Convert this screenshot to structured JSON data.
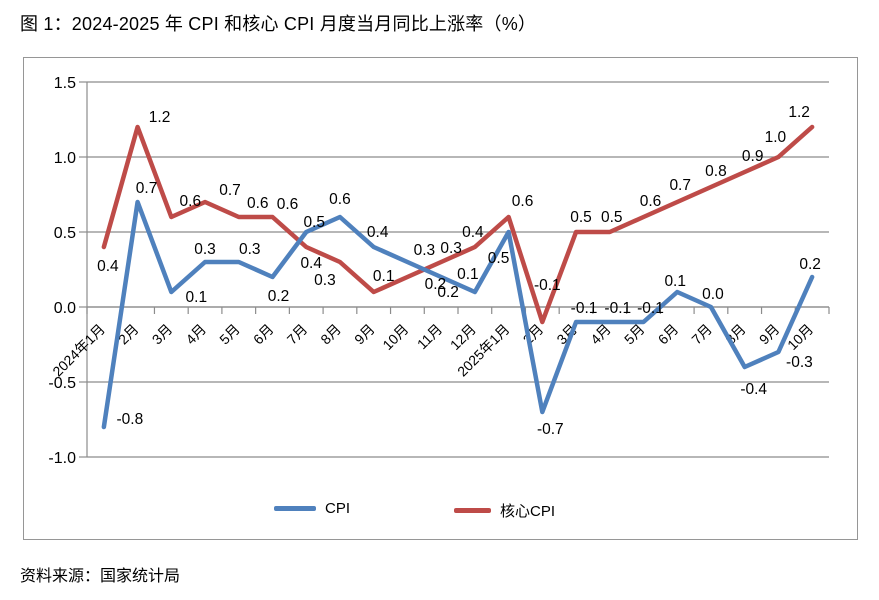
{
  "title": "图 1：2024-2025 年 CPI 和核心 CPI 月度当月同比上涨率（%）",
  "source": "资料来源：国家统计局",
  "colors": {
    "cpi_line": "#4F81BD",
    "core_cpi_line": "#BE4B48",
    "grid": "#8C8C8C",
    "axis": "#8C8C8C",
    "border": "#969696",
    "text": "#000000"
  },
  "chart_data": {
    "type": "line",
    "title": "图 1：2024-2025 年 CPI 和核心 CPI 月度当月同比上涨率（%）",
    "xlabel": "",
    "ylabel": "",
    "ylim": [
      -1.0,
      1.5
    ],
    "y_ticks": [
      1.5,
      1.0,
      0.5,
      0.0,
      -0.5,
      -1.0
    ],
    "grid": true,
    "legend_position": "bottom",
    "categories": [
      "2024年1月",
      "2月",
      "3月",
      "4月",
      "5月",
      "6月",
      "7月",
      "8月",
      "9月",
      "10月",
      "11月",
      "12月",
      "2025年1月",
      "2月",
      "3月",
      "4月",
      "5月",
      "6月",
      "7月",
      "8月",
      "9月",
      "10月"
    ],
    "series": [
      {
        "name": "CPI",
        "color": "#4F81BD",
        "values": [
          -0.8,
          0.7,
          0.1,
          0.3,
          0.3,
          0.2,
          0.5,
          0.6,
          0.4,
          0.3,
          0.2,
          0.1,
          0.5,
          -0.7,
          -0.1,
          -0.1,
          -0.1,
          0.1,
          0.0,
          -0.4,
          -0.3,
          0.2
        ],
        "label_offsets": [
          [
            26,
            -3
          ],
          [
            9,
            -9
          ],
          [
            25,
            10
          ],
          [
            0,
            -8
          ],
          [
            11,
            -8
          ],
          [
            6,
            24
          ],
          [
            8,
            -5
          ],
          [
            0,
            -13
          ],
          [
            4,
            -10
          ],
          [
            17,
            -7
          ],
          [
            7,
            20
          ],
          [
            -7,
            -13
          ],
          [
            -10,
            31
          ],
          [
            8,
            22
          ],
          [
            8,
            -9
          ],
          [
            8,
            -9
          ],
          [
            7,
            -9
          ],
          [
            -2,
            -6
          ],
          [
            2,
            -8
          ],
          [
            9,
            27
          ],
          [
            21,
            15
          ],
          [
            -2,
            -8
          ]
        ]
      },
      {
        "name": "核心CPI",
        "color": "#BE4B48",
        "values": [
          0.4,
          1.2,
          0.6,
          0.7,
          0.6,
          0.6,
          0.4,
          0.3,
          0.1,
          0.2,
          0.3,
          0.4,
          0.6,
          -0.1,
          0.5,
          0.5,
          0.6,
          0.7,
          0.8,
          0.9,
          1.0,
          1.2
        ],
        "label_offsets": [
          [
            4,
            24
          ],
          [
            22,
            -5
          ],
          [
            19,
            -11
          ],
          [
            25,
            -7
          ],
          [
            19,
            -9
          ],
          [
            15,
            -8
          ],
          [
            5,
            21
          ],
          [
            -15,
            23
          ],
          [
            10,
            -11
          ],
          [
            28,
            12
          ],
          [
            10,
            -9
          ],
          [
            -2,
            -10
          ],
          [
            14,
            -11
          ],
          [
            5,
            -32
          ],
          [
            5,
            -10
          ],
          [
            2,
            -10
          ],
          [
            7,
            -11
          ],
          [
            3,
            -12
          ],
          [
            5,
            -11
          ],
          [
            8,
            -11
          ],
          [
            -3,
            -15
          ],
          [
            -13,
            -10
          ]
        ]
      }
    ]
  }
}
